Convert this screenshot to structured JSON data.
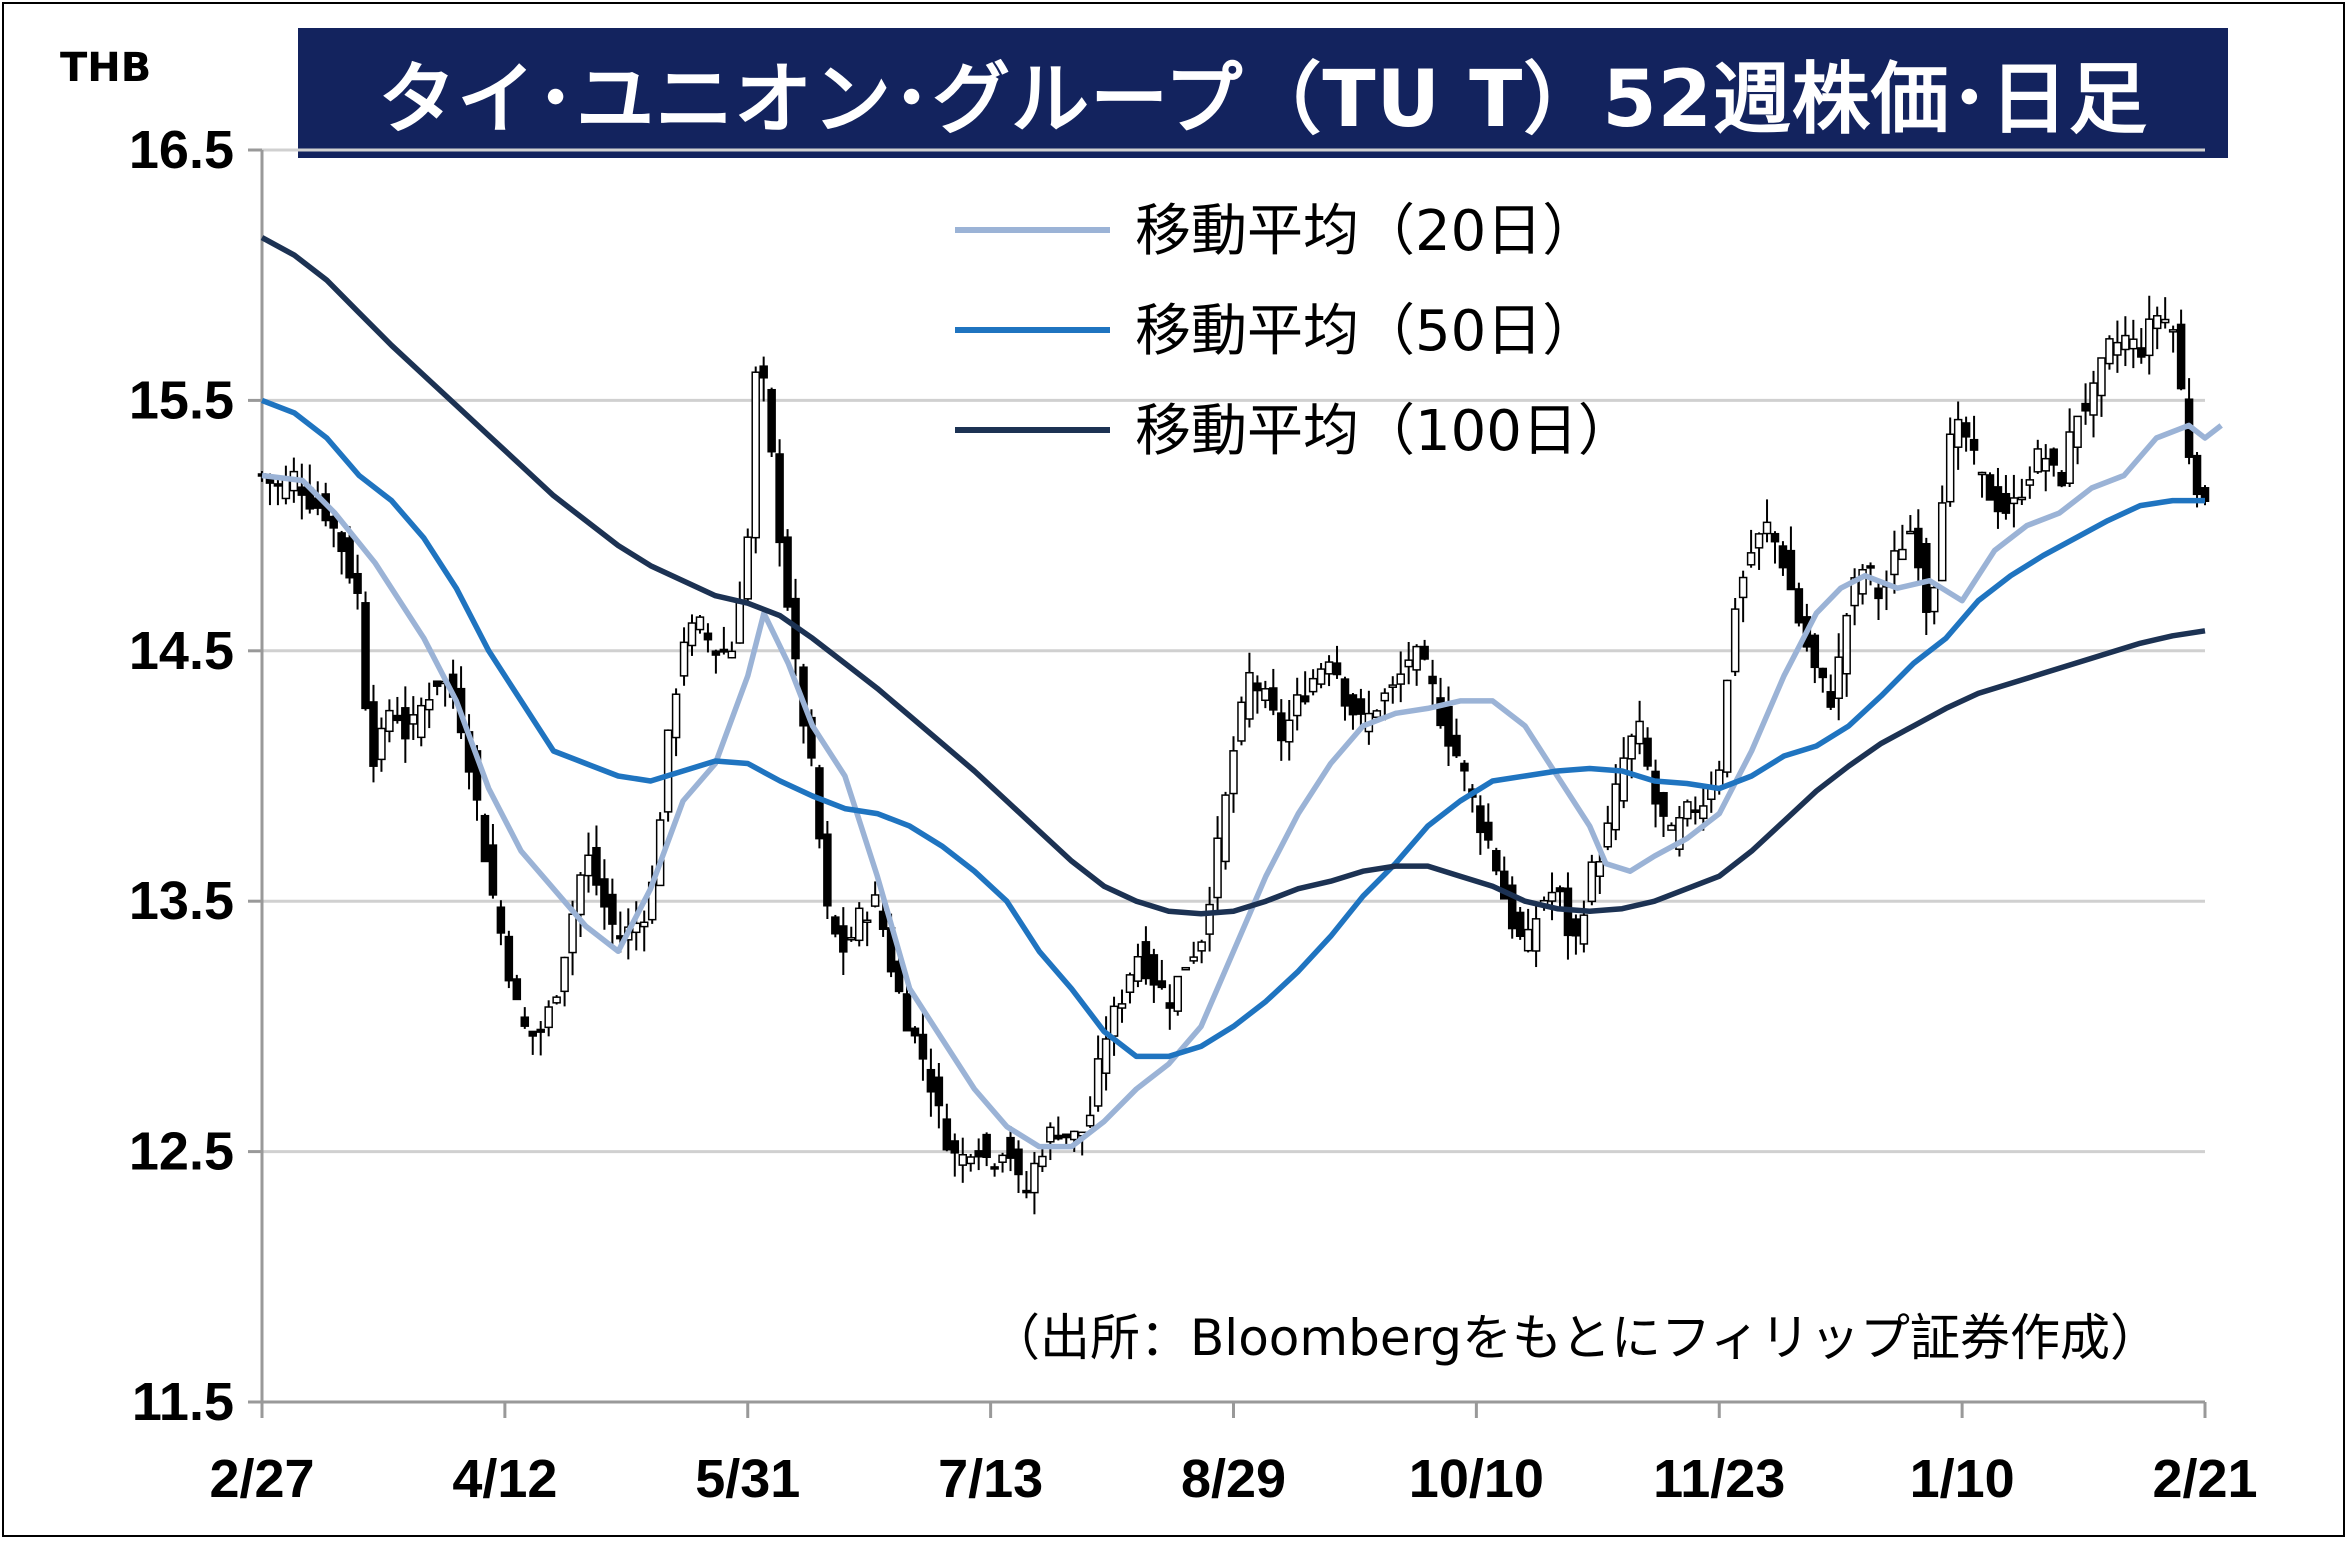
{
  "chart_data": {
    "type": "line",
    "title": "タイ･ユニオン･グループ（TU T）52週株価･日足",
    "ylabel": "THB",
    "ylim": [
      11.5,
      16.5
    ],
    "yticks": [
      "11.5",
      "12.5",
      "13.5",
      "14.5",
      "15.5",
      "16.5"
    ],
    "xticks": [
      "2/27",
      "4/12",
      "5/31",
      "7/13",
      "8/29",
      "10/10",
      "11/23",
      "1/10",
      "2/21"
    ],
    "grid": true,
    "legend_position": "top-right",
    "source_note": "（出所：Bloombergをもとにフィリップ証券作成）",
    "colors": {
      "ma20": "#9bb3d6",
      "ma50": "#1f74c0",
      "ma100": "#1c3253",
      "candle": "#000000",
      "title_bg": "#13235e"
    },
    "series": [
      {
        "name": "移動平均（20日）",
        "key": "ma20",
        "points": [
          [
            0,
            15.2
          ],
          [
            0.025,
            15.18
          ],
          [
            0.045,
            15.05
          ],
          [
            0.07,
            14.85
          ],
          [
            0.1,
            14.55
          ],
          [
            0.12,
            14.3
          ],
          [
            0.14,
            13.95
          ],
          [
            0.16,
            13.7
          ],
          [
            0.18,
            13.55
          ],
          [
            0.2,
            13.4
          ],
          [
            0.22,
            13.3
          ],
          [
            0.24,
            13.55
          ],
          [
            0.26,
            13.9
          ],
          [
            0.28,
            14.05
          ],
          [
            0.3,
            14.4
          ],
          [
            0.31,
            14.65
          ],
          [
            0.325,
            14.45
          ],
          [
            0.34,
            14.2
          ],
          [
            0.36,
            14.0
          ],
          [
            0.38,
            13.6
          ],
          [
            0.4,
            13.15
          ],
          [
            0.42,
            12.95
          ],
          [
            0.44,
            12.75
          ],
          [
            0.46,
            12.6
          ],
          [
            0.48,
            12.52
          ],
          [
            0.5,
            12.52
          ],
          [
            0.52,
            12.62
          ],
          [
            0.54,
            12.75
          ],
          [
            0.56,
            12.85
          ],
          [
            0.58,
            13.0
          ],
          [
            0.6,
            13.3
          ],
          [
            0.62,
            13.6
          ],
          [
            0.64,
            13.85
          ],
          [
            0.66,
            14.05
          ],
          [
            0.68,
            14.2
          ],
          [
            0.7,
            14.25
          ],
          [
            0.72,
            14.27
          ],
          [
            0.74,
            14.3
          ],
          [
            0.76,
            14.3
          ],
          [
            0.78,
            14.2
          ],
          [
            0.8,
            14.0
          ],
          [
            0.82,
            13.8
          ],
          [
            0.83,
            13.65
          ],
          [
            0.845,
            13.62
          ],
          [
            0.86,
            13.68
          ],
          [
            0.88,
            13.75
          ],
          [
            0.9,
            13.85
          ],
          [
            0.92,
            14.1
          ],
          [
            0.94,
            14.4
          ],
          [
            0.96,
            14.65
          ],
          [
            0.975,
            14.75
          ],
          [
            0.99,
            14.8
          ],
          [
            1.01,
            14.75
          ],
          [
            1.03,
            14.78
          ],
          [
            1.05,
            14.7
          ],
          [
            1.07,
            14.9
          ],
          [
            1.09,
            15.0
          ],
          [
            1.11,
            15.05
          ],
          [
            1.13,
            15.15
          ],
          [
            1.15,
            15.2
          ],
          [
            1.17,
            15.35
          ],
          [
            1.19,
            15.4
          ],
          [
            1.2,
            15.35
          ],
          [
            1.21,
            15.4
          ]
        ]
      },
      {
        "name": "移動平均（50日）",
        "key": "ma50",
        "points": [
          [
            0,
            15.5
          ],
          [
            0.02,
            15.45
          ],
          [
            0.04,
            15.35
          ],
          [
            0.06,
            15.2
          ],
          [
            0.08,
            15.1
          ],
          [
            0.1,
            14.95
          ],
          [
            0.12,
            14.75
          ],
          [
            0.14,
            14.5
          ],
          [
            0.16,
            14.3
          ],
          [
            0.18,
            14.1
          ],
          [
            0.2,
            14.05
          ],
          [
            0.22,
            14.0
          ],
          [
            0.24,
            13.98
          ],
          [
            0.26,
            14.02
          ],
          [
            0.28,
            14.06
          ],
          [
            0.3,
            14.05
          ],
          [
            0.32,
            13.98
          ],
          [
            0.34,
            13.92
          ],
          [
            0.36,
            13.87
          ],
          [
            0.38,
            13.85
          ],
          [
            0.4,
            13.8
          ],
          [
            0.42,
            13.72
          ],
          [
            0.44,
            13.62
          ],
          [
            0.46,
            13.5
          ],
          [
            0.48,
            13.3
          ],
          [
            0.5,
            13.15
          ],
          [
            0.52,
            12.98
          ],
          [
            0.54,
            12.88
          ],
          [
            0.56,
            12.88
          ],
          [
            0.58,
            12.92
          ],
          [
            0.6,
            13.0
          ],
          [
            0.62,
            13.1
          ],
          [
            0.64,
            13.22
          ],
          [
            0.66,
            13.36
          ],
          [
            0.68,
            13.52
          ],
          [
            0.7,
            13.65
          ],
          [
            0.72,
            13.8
          ],
          [
            0.74,
            13.9
          ],
          [
            0.76,
            13.98
          ],
          [
            0.78,
            14.0
          ],
          [
            0.8,
            14.02
          ],
          [
            0.82,
            14.03
          ],
          [
            0.84,
            14.02
          ],
          [
            0.86,
            13.98
          ],
          [
            0.88,
            13.97
          ],
          [
            0.9,
            13.95
          ],
          [
            0.92,
            14.0
          ],
          [
            0.94,
            14.08
          ],
          [
            0.96,
            14.12
          ],
          [
            0.98,
            14.2
          ],
          [
            1.0,
            14.32
          ],
          [
            1.02,
            14.45
          ],
          [
            1.04,
            14.55
          ],
          [
            1.06,
            14.7
          ],
          [
            1.08,
            14.8
          ],
          [
            1.1,
            14.88
          ],
          [
            1.12,
            14.95
          ],
          [
            1.14,
            15.02
          ],
          [
            1.16,
            15.08
          ],
          [
            1.18,
            15.1
          ],
          [
            1.2,
            15.1
          ]
        ]
      },
      {
        "name": "移動平均（100日）",
        "key": "ma100",
        "points": [
          [
            0,
            16.15
          ],
          [
            0.02,
            16.08
          ],
          [
            0.04,
            15.98
          ],
          [
            0.06,
            15.85
          ],
          [
            0.08,
            15.72
          ],
          [
            0.1,
            15.6
          ],
          [
            0.12,
            15.48
          ],
          [
            0.14,
            15.36
          ],
          [
            0.16,
            15.24
          ],
          [
            0.18,
            15.12
          ],
          [
            0.2,
            15.02
          ],
          [
            0.22,
            14.92
          ],
          [
            0.24,
            14.84
          ],
          [
            0.26,
            14.78
          ],
          [
            0.28,
            14.72
          ],
          [
            0.3,
            14.69
          ],
          [
            0.32,
            14.64
          ],
          [
            0.34,
            14.55
          ],
          [
            0.36,
            14.45
          ],
          [
            0.38,
            14.35
          ],
          [
            0.4,
            14.24
          ],
          [
            0.42,
            14.13
          ],
          [
            0.44,
            14.02
          ],
          [
            0.46,
            13.9
          ],
          [
            0.48,
            13.78
          ],
          [
            0.5,
            13.66
          ],
          [
            0.52,
            13.56
          ],
          [
            0.54,
            13.5
          ],
          [
            0.56,
            13.46
          ],
          [
            0.58,
            13.45
          ],
          [
            0.6,
            13.46
          ],
          [
            0.62,
            13.5
          ],
          [
            0.64,
            13.55
          ],
          [
            0.66,
            13.58
          ],
          [
            0.68,
            13.62
          ],
          [
            0.7,
            13.64
          ],
          [
            0.72,
            13.64
          ],
          [
            0.74,
            13.6
          ],
          [
            0.76,
            13.56
          ],
          [
            0.78,
            13.5
          ],
          [
            0.8,
            13.47
          ],
          [
            0.82,
            13.46
          ],
          [
            0.84,
            13.47
          ],
          [
            0.86,
            13.5
          ],
          [
            0.88,
            13.55
          ],
          [
            0.9,
            13.6
          ],
          [
            0.92,
            13.7
          ],
          [
            0.94,
            13.82
          ],
          [
            0.96,
            13.94
          ],
          [
            0.98,
            14.04
          ],
          [
            1.0,
            14.13
          ],
          [
            1.02,
            14.2
          ],
          [
            1.04,
            14.27
          ],
          [
            1.06,
            14.33
          ],
          [
            1.08,
            14.37
          ],
          [
            1.1,
            14.41
          ],
          [
            1.12,
            14.45
          ],
          [
            1.14,
            14.49
          ],
          [
            1.16,
            14.53
          ],
          [
            1.18,
            14.56
          ],
          [
            1.2,
            14.58
          ]
        ]
      },
      {
        "name": "",
        "key": "price",
        "points": [
          [
            0,
            15.2
          ],
          [
            0.01,
            15.15
          ],
          [
            0.02,
            15.2
          ],
          [
            0.03,
            15.1
          ],
          [
            0.04,
            15.05
          ],
          [
            0.05,
            14.9
          ],
          [
            0.06,
            14.7
          ],
          [
            0.065,
            14.2
          ],
          [
            0.07,
            14.05
          ],
          [
            0.08,
            14.3
          ],
          [
            0.09,
            14.15
          ],
          [
            0.1,
            14.3
          ],
          [
            0.11,
            14.4
          ],
          [
            0.12,
            14.3
          ],
          [
            0.13,
            14.0
          ],
          [
            0.14,
            13.6
          ],
          [
            0.15,
            13.3
          ],
          [
            0.16,
            13.0
          ],
          [
            0.17,
            12.95
          ],
          [
            0.18,
            13.1
          ],
          [
            0.19,
            13.4
          ],
          [
            0.2,
            13.7
          ],
          [
            0.21,
            13.5
          ],
          [
            0.22,
            13.35
          ],
          [
            0.23,
            13.4
          ],
          [
            0.24,
            13.5
          ],
          [
            0.25,
            14.1
          ],
          [
            0.26,
            14.55
          ],
          [
            0.27,
            14.6
          ],
          [
            0.28,
            14.5
          ],
          [
            0.29,
            14.5
          ],
          [
            0.3,
            14.95
          ],
          [
            0.305,
            15.6
          ],
          [
            0.31,
            15.55
          ],
          [
            0.32,
            14.95
          ],
          [
            0.33,
            14.4
          ],
          [
            0.34,
            14.0
          ],
          [
            0.35,
            13.4
          ],
          [
            0.36,
            13.3
          ],
          [
            0.37,
            13.45
          ],
          [
            0.38,
            13.5
          ],
          [
            0.39,
            13.2
          ],
          [
            0.4,
            13.0
          ],
          [
            0.41,
            12.85
          ],
          [
            0.42,
            12.6
          ],
          [
            0.43,
            12.45
          ],
          [
            0.44,
            12.55
          ],
          [
            0.45,
            12.45
          ],
          [
            0.46,
            12.55
          ],
          [
            0.47,
            12.3
          ],
          [
            0.48,
            12.5
          ],
          [
            0.49,
            12.6
          ],
          [
            0.5,
            12.55
          ],
          [
            0.51,
            12.6
          ],
          [
            0.52,
            12.95
          ],
          [
            0.53,
            13.1
          ],
          [
            0.54,
            13.3
          ],
          [
            0.55,
            13.2
          ],
          [
            0.56,
            13.1
          ],
          [
            0.57,
            13.25
          ],
          [
            0.58,
            13.35
          ],
          [
            0.59,
            13.7
          ],
          [
            0.6,
            14.1
          ],
          [
            0.61,
            14.4
          ],
          [
            0.62,
            14.3
          ],
          [
            0.63,
            14.15
          ],
          [
            0.64,
            14.3
          ],
          [
            0.65,
            14.4
          ],
          [
            0.66,
            14.5
          ],
          [
            0.67,
            14.3
          ],
          [
            0.68,
            14.2
          ],
          [
            0.69,
            14.3
          ],
          [
            0.7,
            14.35
          ],
          [
            0.71,
            14.5
          ],
          [
            0.72,
            14.4
          ],
          [
            0.73,
            14.2
          ],
          [
            0.74,
            14.05
          ],
          [
            0.75,
            13.85
          ],
          [
            0.76,
            13.7
          ],
          [
            0.77,
            13.45
          ],
          [
            0.78,
            13.3
          ],
          [
            0.79,
            13.5
          ],
          [
            0.8,
            13.55
          ],
          [
            0.81,
            13.3
          ],
          [
            0.82,
            13.6
          ],
          [
            0.83,
            13.75
          ],
          [
            0.84,
            14.05
          ],
          [
            0.85,
            14.2
          ],
          [
            0.86,
            13.9
          ],
          [
            0.87,
            13.75
          ],
          [
            0.88,
            13.85
          ],
          [
            0.89,
            13.9
          ],
          [
            0.9,
            14.05
          ],
          [
            0.91,
            14.7
          ],
          [
            0.92,
            14.9
          ],
          [
            0.93,
            15.0
          ],
          [
            0.94,
            14.85
          ],
          [
            0.95,
            14.6
          ],
          [
            0.96,
            14.4
          ],
          [
            0.97,
            14.3
          ],
          [
            0.98,
            14.7
          ],
          [
            0.99,
            14.85
          ],
          [
            1.0,
            14.7
          ],
          [
            1.01,
            14.9
          ],
          [
            1.02,
            15.0
          ],
          [
            1.03,
            14.6
          ],
          [
            1.04,
            15.3
          ],
          [
            1.05,
            15.4
          ],
          [
            1.06,
            15.2
          ],
          [
            1.07,
            15.1
          ],
          [
            1.08,
            15.05
          ],
          [
            1.09,
            15.2
          ],
          [
            1.1,
            15.3
          ],
          [
            1.11,
            15.15
          ],
          [
            1.12,
            15.45
          ],
          [
            1.13,
            15.5
          ],
          [
            1.14,
            15.7
          ],
          [
            1.15,
            15.75
          ],
          [
            1.16,
            15.7
          ],
          [
            1.17,
            15.85
          ],
          [
            1.18,
            15.8
          ],
          [
            1.19,
            15.3
          ],
          [
            1.2,
            15.05
          ]
        ]
      }
    ]
  }
}
